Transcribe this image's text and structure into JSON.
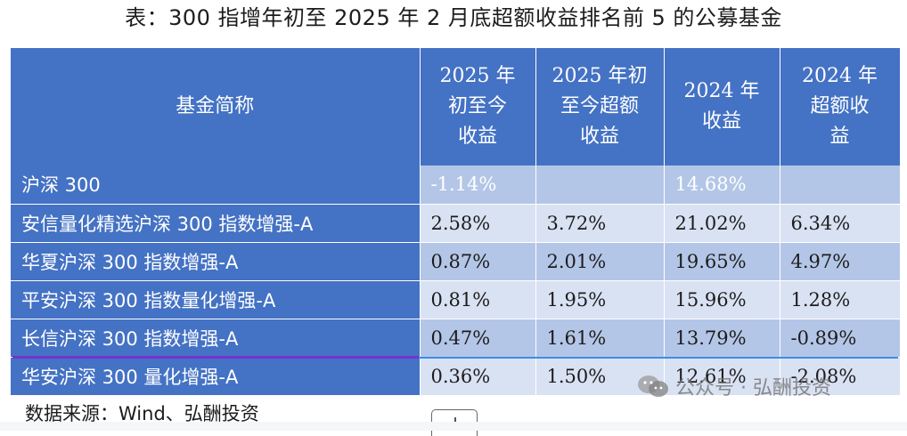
{
  "title": "表：300 指增年初至 2025 年 2 月底超额收益排名前 5 的公募基金",
  "table": {
    "headers": [
      [
        "基金简称"
      ],
      [
        "2025 年",
        "初至今",
        "收益"
      ],
      [
        "2025 年初",
        "至今超额",
        "收益"
      ],
      [
        "2024 年",
        "收益"
      ],
      [
        "2024 年",
        "超额收",
        "益"
      ]
    ],
    "rows": [
      {
        "name": "沪深 300",
        "values": [
          "-1.14%",
          "",
          "14.68%",
          ""
        ]
      },
      {
        "name": "安信量化精选沪深 300 指数增强-A",
        "values": [
          "2.58%",
          "3.72%",
          "21.02%",
          "6.34%"
        ]
      },
      {
        "name": "华夏沪深 300 指数增强-A",
        "values": [
          "0.87%",
          "2.01%",
          "19.65%",
          "4.97%"
        ]
      },
      {
        "name": "平安沪深 300 指数量化增强-A",
        "values": [
          "0.81%",
          "1.95%",
          "15.96%",
          "1.28%"
        ]
      },
      {
        "name": "长信沪深 300 指数增强-A",
        "values": [
          "0.47%",
          "1.61%",
          "13.79%",
          "-0.89%"
        ]
      },
      {
        "name": "华安沪深 300 量化增强-A",
        "values": [
          "0.36%",
          "1.50%",
          "12.61%",
          "-2.08%"
        ]
      }
    ]
  },
  "source": "数据来源：Wind、弘酬投资",
  "watermark": {
    "text": "公众号 · 弘酬投资",
    "icon": "wechat-icon"
  },
  "colors": {
    "header": "#4472c4",
    "row_light": "#d9e2f3",
    "row_mid": "#b4c6e7"
  }
}
